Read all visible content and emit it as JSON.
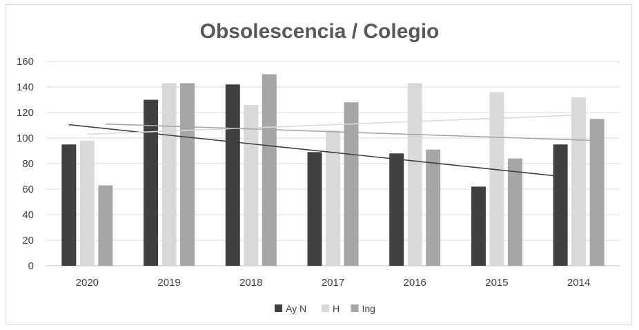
{
  "chart_data": {
    "type": "bar",
    "title": "Obsolescencia / Colegio",
    "categories": [
      "2020",
      "2019",
      "2018",
      "2017",
      "2016",
      "2015",
      "2014"
    ],
    "ylim": [
      0,
      160
    ],
    "yticks": [
      0,
      20,
      40,
      60,
      80,
      100,
      120,
      140,
      160
    ],
    "grid": true,
    "legend_position": "bottom",
    "series": [
      {
        "name": "Ay N",
        "color": "#404040",
        "values": [
          95,
          130,
          142,
          89,
          88,
          62,
          95
        ]
      },
      {
        "name": "H",
        "color": "#d9d9d9",
        "values": [
          98,
          143,
          126,
          106,
          143,
          136,
          132
        ]
      },
      {
        "name": "Ing",
        "color": "#a6a6a6",
        "values": [
          63,
          143,
          150,
          128,
          91,
          84,
          115
        ]
      }
    ],
    "trendlines": [
      {
        "series": "Ay N",
        "color": "#404040",
        "start": 110.5,
        "end": 70
      },
      {
        "series": "H",
        "color": "#d9d9d9",
        "start": 103,
        "end": 118
      },
      {
        "series": "Ing",
        "color": "#a6a6a6",
        "start": 111,
        "end": 98
      }
    ]
  }
}
